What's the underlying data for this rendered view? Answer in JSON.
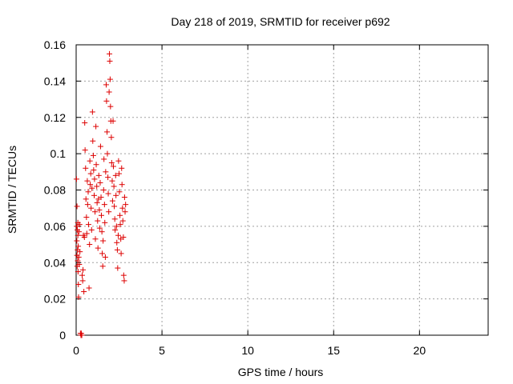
{
  "chart_data": {
    "type": "scatter",
    "title": "Day 218 of 2019, SRMTID for receiver p692",
    "xlabel": "GPS time / hours",
    "ylabel": "SRMTID / TECUs",
    "xlim": [
      0,
      24
    ],
    "ylim": [
      0,
      0.16
    ],
    "xticks": [
      0,
      5,
      10,
      15,
      20
    ],
    "yticks": [
      0,
      0.02,
      0.04,
      0.06,
      0.08,
      0.1,
      0.12,
      0.14,
      0.16
    ],
    "xtick_labels": [
      "0",
      "5",
      "10",
      "15",
      "20"
    ],
    "ytick_labels": [
      "0",
      "0.02",
      "0.04",
      "0.06",
      "0.08",
      "0.1",
      "0.12",
      "0.14",
      "0.16"
    ],
    "grid": true,
    "marker": "+",
    "marker_color": "#dd0000",
    "series": [
      {
        "points": [
          [
            0.02,
            0.086
          ],
          [
            0.03,
            0.06
          ],
          [
            0.04,
            0.052
          ],
          [
            0.05,
            0.044
          ],
          [
            0.05,
            0.071
          ],
          [
            0.06,
            0.038
          ],
          [
            0.07,
            0.058
          ],
          [
            0.08,
            0.047
          ],
          [
            0.09,
            0.041
          ],
          [
            0.1,
            0.055
          ],
          [
            0.1,
            0.062
          ],
          [
            0.11,
            0.035
          ],
          [
            0.12,
            0.049
          ],
          [
            0.13,
            0.028
          ],
          [
            0.14,
            0.021
          ],
          [
            0.15,
            0.043
          ],
          [
            0.16,
            0.057
          ],
          [
            0.18,
            0.039
          ],
          [
            0.2,
            0.061
          ],
          [
            0.22,
            0.046
          ],
          [
            0.25,
            0.001
          ],
          [
            0.28,
            0.0
          ],
          [
            0.3,
            0.001
          ],
          [
            0.33,
            0.0
          ],
          [
            0.35,
            0.033
          ],
          [
            0.38,
            0.03
          ],
          [
            0.4,
            0.036
          ],
          [
            0.42,
            0.055
          ],
          [
            0.45,
            0.024
          ],
          [
            0.48,
            0.054
          ],
          [
            0.5,
            0.117
          ],
          [
            0.52,
            0.102
          ],
          [
            0.55,
            0.092
          ],
          [
            0.57,
            0.075
          ],
          [
            0.6,
            0.065
          ],
          [
            0.62,
            0.056
          ],
          [
            0.65,
            0.085
          ],
          [
            0.67,
            0.072
          ],
          [
            0.7,
            0.079
          ],
          [
            0.72,
            0.061
          ],
          [
            0.75,
            0.026
          ],
          [
            0.78,
            0.05
          ],
          [
            0.8,
            0.096
          ],
          [
            0.82,
            0.083
          ],
          [
            0.85,
            0.089
          ],
          [
            0.87,
            0.07
          ],
          [
            0.9,
            0.058
          ],
          [
            0.92,
            0.081
          ],
          [
            0.95,
            0.123
          ],
          [
            0.97,
            0.107
          ],
          [
            1.0,
            0.099
          ],
          [
            1.02,
            0.091
          ],
          [
            1.05,
            0.077
          ],
          [
            1.07,
            0.086
          ],
          [
            1.1,
            0.068
          ],
          [
            1.12,
            0.053
          ],
          [
            1.15,
            0.115
          ],
          [
            1.17,
            0.094
          ],
          [
            1.2,
            0.082
          ],
          [
            1.22,
            0.073
          ],
          [
            1.25,
            0.063
          ],
          [
            1.27,
            0.048
          ],
          [
            1.3,
            0.075
          ],
          [
            1.32,
            0.088
          ],
          [
            1.35,
            0.069
          ],
          [
            1.37,
            0.059
          ],
          [
            1.4,
            0.084
          ],
          [
            1.42,
            0.104
          ],
          [
            1.45,
            0.076
          ],
          [
            1.47,
            0.066
          ],
          [
            1.5,
            0.057
          ],
          [
            1.52,
            0.045
          ],
          [
            1.55,
            0.038
          ],
          [
            1.57,
            0.052
          ],
          [
            1.6,
            0.08
          ],
          [
            1.62,
            0.097
          ],
          [
            1.65,
            0.072
          ],
          [
            1.67,
            0.062
          ],
          [
            1.7,
            0.043
          ],
          [
            1.72,
            0.09
          ],
          [
            1.75,
            0.138
          ],
          [
            1.77,
            0.129
          ],
          [
            1.8,
            0.112
          ],
          [
            1.82,
            0.1
          ],
          [
            1.85,
            0.087
          ],
          [
            1.87,
            0.078
          ],
          [
            1.9,
            0.068
          ],
          [
            1.92,
            0.134
          ],
          [
            1.94,
            0.155
          ],
          [
            1.96,
            0.151
          ],
          [
            1.98,
            0.141
          ],
          [
            2.0,
            0.126
          ],
          [
            2.02,
            0.118
          ],
          [
            2.05,
            0.109
          ],
          [
            2.07,
            0.095
          ],
          [
            2.1,
            0.085
          ],
          [
            2.12,
            0.074
          ],
          [
            2.15,
            0.118
          ],
          [
            2.17,
            0.093
          ],
          [
            2.2,
            0.082
          ],
          [
            2.22,
            0.071
          ],
          [
            2.25,
            0.064
          ],
          [
            2.27,
            0.058
          ],
          [
            2.3,
            0.088
          ],
          [
            2.32,
            0.077
          ],
          [
            2.35,
            0.06
          ],
          [
            2.37,
            0.051
          ],
          [
            2.4,
            0.047
          ],
          [
            2.42,
            0.037
          ],
          [
            2.45,
            0.055
          ],
          [
            2.47,
            0.096
          ],
          [
            2.5,
            0.089
          ],
          [
            2.52,
            0.079
          ],
          [
            2.55,
            0.066
          ],
          [
            2.57,
            0.061
          ],
          [
            2.6,
            0.053
          ],
          [
            2.62,
            0.045
          ],
          [
            2.65,
            0.092
          ],
          [
            2.67,
            0.083
          ],
          [
            2.7,
            0.07
          ],
          [
            2.72,
            0.063
          ],
          [
            2.75,
            0.054
          ],
          [
            2.77,
            0.033
          ],
          [
            2.8,
            0.03
          ],
          [
            2.82,
            0.076
          ],
          [
            2.85,
            0.068
          ],
          [
            2.88,
            0.072
          ]
        ]
      }
    ]
  }
}
